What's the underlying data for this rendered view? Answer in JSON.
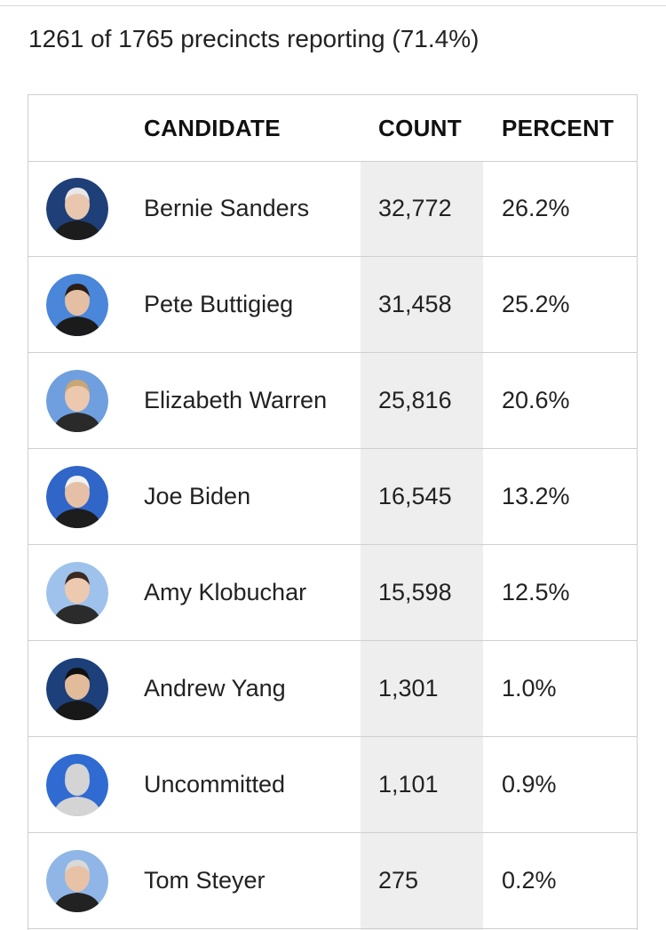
{
  "status_text": "1261 of 1765 precincts reporting (71.4%)",
  "table": {
    "headers": {
      "candidate": "CANDIDATE",
      "count": "COUNT",
      "percent": "PERCENT"
    },
    "rows": [
      {
        "name": "Bernie Sanders",
        "count": "32,772",
        "percent": "26.2%",
        "avatar": {
          "bg": "#1f3f78",
          "skin": "#e9c7ae",
          "hair": "#e8e8e8",
          "suit": "#1c1c1c"
        }
      },
      {
        "name": "Pete Buttigieg",
        "count": "31,458",
        "percent": "25.2%",
        "avatar": {
          "bg": "#4a86d9",
          "skin": "#e4bfa3",
          "hair": "#2a1e16",
          "suit": "#1b1b1b"
        }
      },
      {
        "name": "Elizabeth Warren",
        "count": "25,816",
        "percent": "20.6%",
        "avatar": {
          "bg": "#6f9fdf",
          "skin": "#ecc8ae",
          "hair": "#c9a676",
          "suit": "#2a2a2a"
        }
      },
      {
        "name": "Joe Biden",
        "count": "16,545",
        "percent": "13.2%",
        "avatar": {
          "bg": "#2f66c7",
          "skin": "#e6c0a6",
          "hair": "#f2f2f2",
          "suit": "#1d1d1d"
        }
      },
      {
        "name": "Amy Klobuchar",
        "count": "15,598",
        "percent": "12.5%",
        "avatar": {
          "bg": "#9fc2ec",
          "skin": "#edc9b0",
          "hair": "#3a2a20",
          "suit": "#2b2b2b"
        }
      },
      {
        "name": "Andrew Yang",
        "count": "1,301",
        "percent": "1.0%",
        "avatar": {
          "bg": "#1d3f7a",
          "skin": "#e2bc9a",
          "hair": "#111111",
          "suit": "#181818"
        }
      },
      {
        "name": "Uncommitted",
        "count": "1,101",
        "percent": "0.9%",
        "avatar": {
          "bg": "#2f6bd1",
          "skin": "#d4d4d4",
          "hair": "#d4d4d4",
          "suit": "#d4d4d4"
        }
      },
      {
        "name": "Tom Steyer",
        "count": "275",
        "percent": "0.2%",
        "avatar": {
          "bg": "#8fb6e6",
          "skin": "#e7c2a7",
          "hair": "#d9d9d9",
          "suit": "#222222"
        }
      }
    ]
  }
}
